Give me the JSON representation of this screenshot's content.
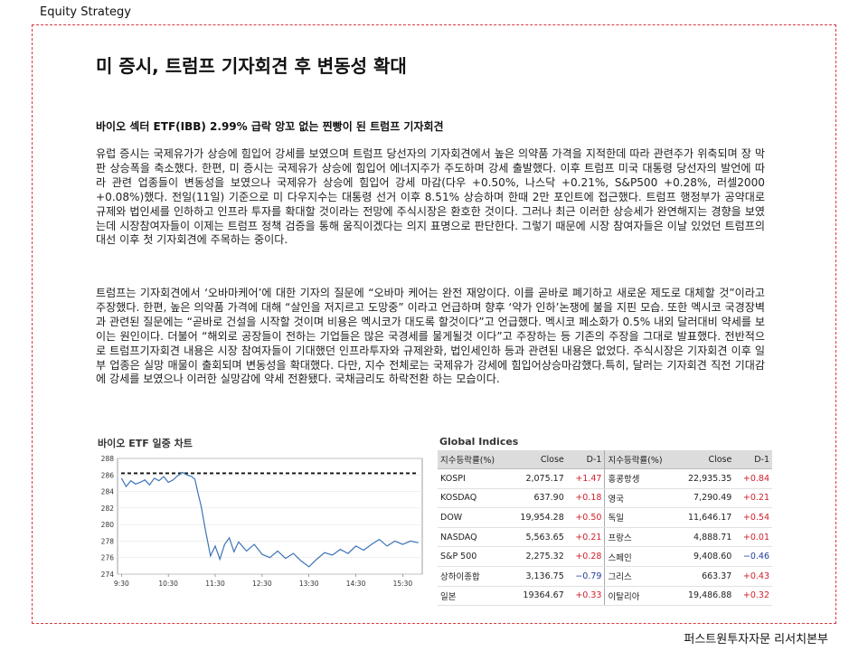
{
  "header": {
    "label": "Equity Strategy"
  },
  "title": "미 증시, 트럼프 기자회견 후 변동성 확대",
  "subheading": "바이오 섹터 ETF(IBB) 2.99% 급락 앙꼬 없는 찐빵이 된 트럼프 기자회견",
  "paragraphs": [
    "유럽 증시는 국제유가가 상승에 힘입어 강세를 보였으며 트럼프 당선자의 기자회견에서 높은 의약품 가격을 지적한데 따라 관련주가 위축되며 장 막판 상승폭을 축소했다. 한편, 미 증시는 국제유가 상승에 힘입어 에너지주가 주도하며 강세 출발했다. 이후 트럼프 미국 대통령 당선자의 발언에 따라 관련 업종들이 변동성을 보였으나 국제유가 상승에 힘입어 강세 마감(다우 +0.50%, 나스닥 +0.21%, S&P500 +0.28%, 러셀2000 +0.08%)했다. 전일(11일) 기준으로 미 다우지수는 대통령 선거 이후 8.51% 상승하며 한때 2만 포인트에 접근했다. 트럼프 행정부가 공약대로 규제와 법인세를 인하하고 인프라 투자를 확대할 것이라는 전망에 주식시장은 환호한 것이다. 그러나 최근 이러한 상승세가 완연해지는 경향을 보였는데 시장참여자들이 이제는 트럼프 정책 검증을 통해 움직이겠다는 의지 표명으로 판단한다. 그렇기 때문에 시장 참여자들은 이날 있었던 트럼프의 대선 이후 첫 기자회견에 주목하는 중이다.",
    "트럼프는 기자회견에서 ‘오바마케어’에 대한 기자의 질문에 “오바마 케어는 완전 재앙이다. 이를 곧바로 폐기하고 새로운 제도로 대체할 것”이라고 주장했다. 한편, 높은 의약품 가격에 대해 “살인을 저지르고 도망중” 이라고 언급하며 향후 ‘약가 인하’논쟁에 불을 지핀 모습. 또한 멕시코 국경장벽과 관련된 질문에는 “곧바로 건설을 시작할 것이며 비용은 멕시코가 대도록 할것이다”고 언급했다. 멕시코 페소화가 0.5% 내외 달러대비 약세를 보이는 원인이다. 더불어 “해외로 공장들이 전하는 기업들은 많은 국경세를 물게될것 이다”고 주장하는 등 기존의 주장을 그대로 발표했다. 전반적으로 트럼프기자회견 내용은 시장 참여자들이 기대했던 인프라투자와 규제완화, 법인세인하 등과 관련된 내용은 없었다. 주식시장은 기자회견 이후 일부 업종은 실망 매물이 출회되며 변동성을 확대했다. 다만, 지수 전체로는 국제유가 강세에 힘입어상승마감했다.특히, 달러는 기자회견 직전 기대감에 강세를 보였으나 이러한 실망감에 약세 전환됐다. 국채금리도 하락전환 하는 모습이다."
  ],
  "chart_data": {
    "type": "line",
    "title": "바이오 ETF 일중 차트",
    "xlabel": "",
    "ylabel": "",
    "x_ticks": [
      "9:30",
      "10:30",
      "11:30",
      "12:30",
      "13:30",
      "14:30",
      "15:30"
    ],
    "y_ticks": [
      274,
      276,
      278,
      280,
      282,
      284,
      286,
      288
    ],
    "ylim": [
      274,
      288
    ],
    "reference_line": 286.2,
    "series": [
      {
        "x": [
          "9:30",
          "9:36",
          "9:42",
          "9:48",
          "9:54",
          "10:00",
          "10:06",
          "10:12",
          "10:18",
          "10:24",
          "10:30",
          "10:36",
          "10:42",
          "10:48",
          "10:54",
          "11:00",
          "11:04",
          "11:08",
          "11:12",
          "11:18",
          "11:24",
          "11:30",
          "11:36",
          "11:42",
          "11:48",
          "11:54",
          "12:00",
          "12:10",
          "12:20",
          "12:30",
          "12:40",
          "12:50",
          "13:00",
          "13:10",
          "13:20",
          "13:30",
          "13:40",
          "13:50",
          "14:00",
          "14:10",
          "14:20",
          "14:30",
          "14:40",
          "14:50",
          "15:00",
          "15:10",
          "15:20",
          "15:30",
          "15:40",
          "15:50"
        ],
        "values": [
          285.6,
          284.6,
          285.3,
          284.9,
          285.1,
          285.4,
          284.8,
          285.6,
          285.3,
          285.8,
          285.1,
          285.4,
          285.9,
          286.3,
          286.0,
          285.8,
          285.5,
          283.8,
          282.2,
          279.1,
          276.2,
          277.4,
          275.8,
          277.6,
          278.4,
          276.7,
          277.9,
          276.8,
          277.6,
          276.4,
          276.0,
          276.8,
          275.9,
          276.5,
          275.6,
          274.9,
          275.8,
          276.6,
          276.3,
          277.0,
          276.5,
          277.4,
          276.9,
          277.6,
          278.2,
          277.4,
          278.0,
          277.6,
          278.0,
          277.8
        ]
      }
    ]
  },
  "table": {
    "title": "Global Indices",
    "headers": [
      "지수등락률(%)",
      "Close",
      "D-1",
      "지수등락률(%)",
      "Close",
      "D-1"
    ],
    "rows": [
      [
        "KOSPI",
        "2,075.17",
        "+1.47",
        "홍콩항셍",
        "22,935.35",
        "+0.84"
      ],
      [
        "KOSDAQ",
        "637.90",
        "+0.18",
        "영국",
        "7,290.49",
        "+0.21"
      ],
      [
        "DOW",
        "19,954.28",
        "+0.50",
        "독일",
        "11,646.17",
        "+0.54"
      ],
      [
        "NASDAQ",
        "5,563.65",
        "+0.21",
        "프랑스",
        "4,888.71",
        "+0.01"
      ],
      [
        "S&P 500",
        "2,275.32",
        "+0.28",
        "스페인",
        "9,408.60",
        "−0.46"
      ],
      [
        "상하이종합",
        "3,136.75",
        "−0.79",
        "그리스",
        "663.37",
        "+0.43"
      ],
      [
        "일본",
        "19364.67",
        "+0.33",
        "이탈리아",
        "19,486.88",
        "+0.32"
      ]
    ]
  },
  "footer": {
    "text": "퍼스트원투자자문 리서치본부"
  },
  "colors": {
    "frame": "#d9393f",
    "positive": "#d0202b",
    "negative": "#1f3c9a"
  }
}
